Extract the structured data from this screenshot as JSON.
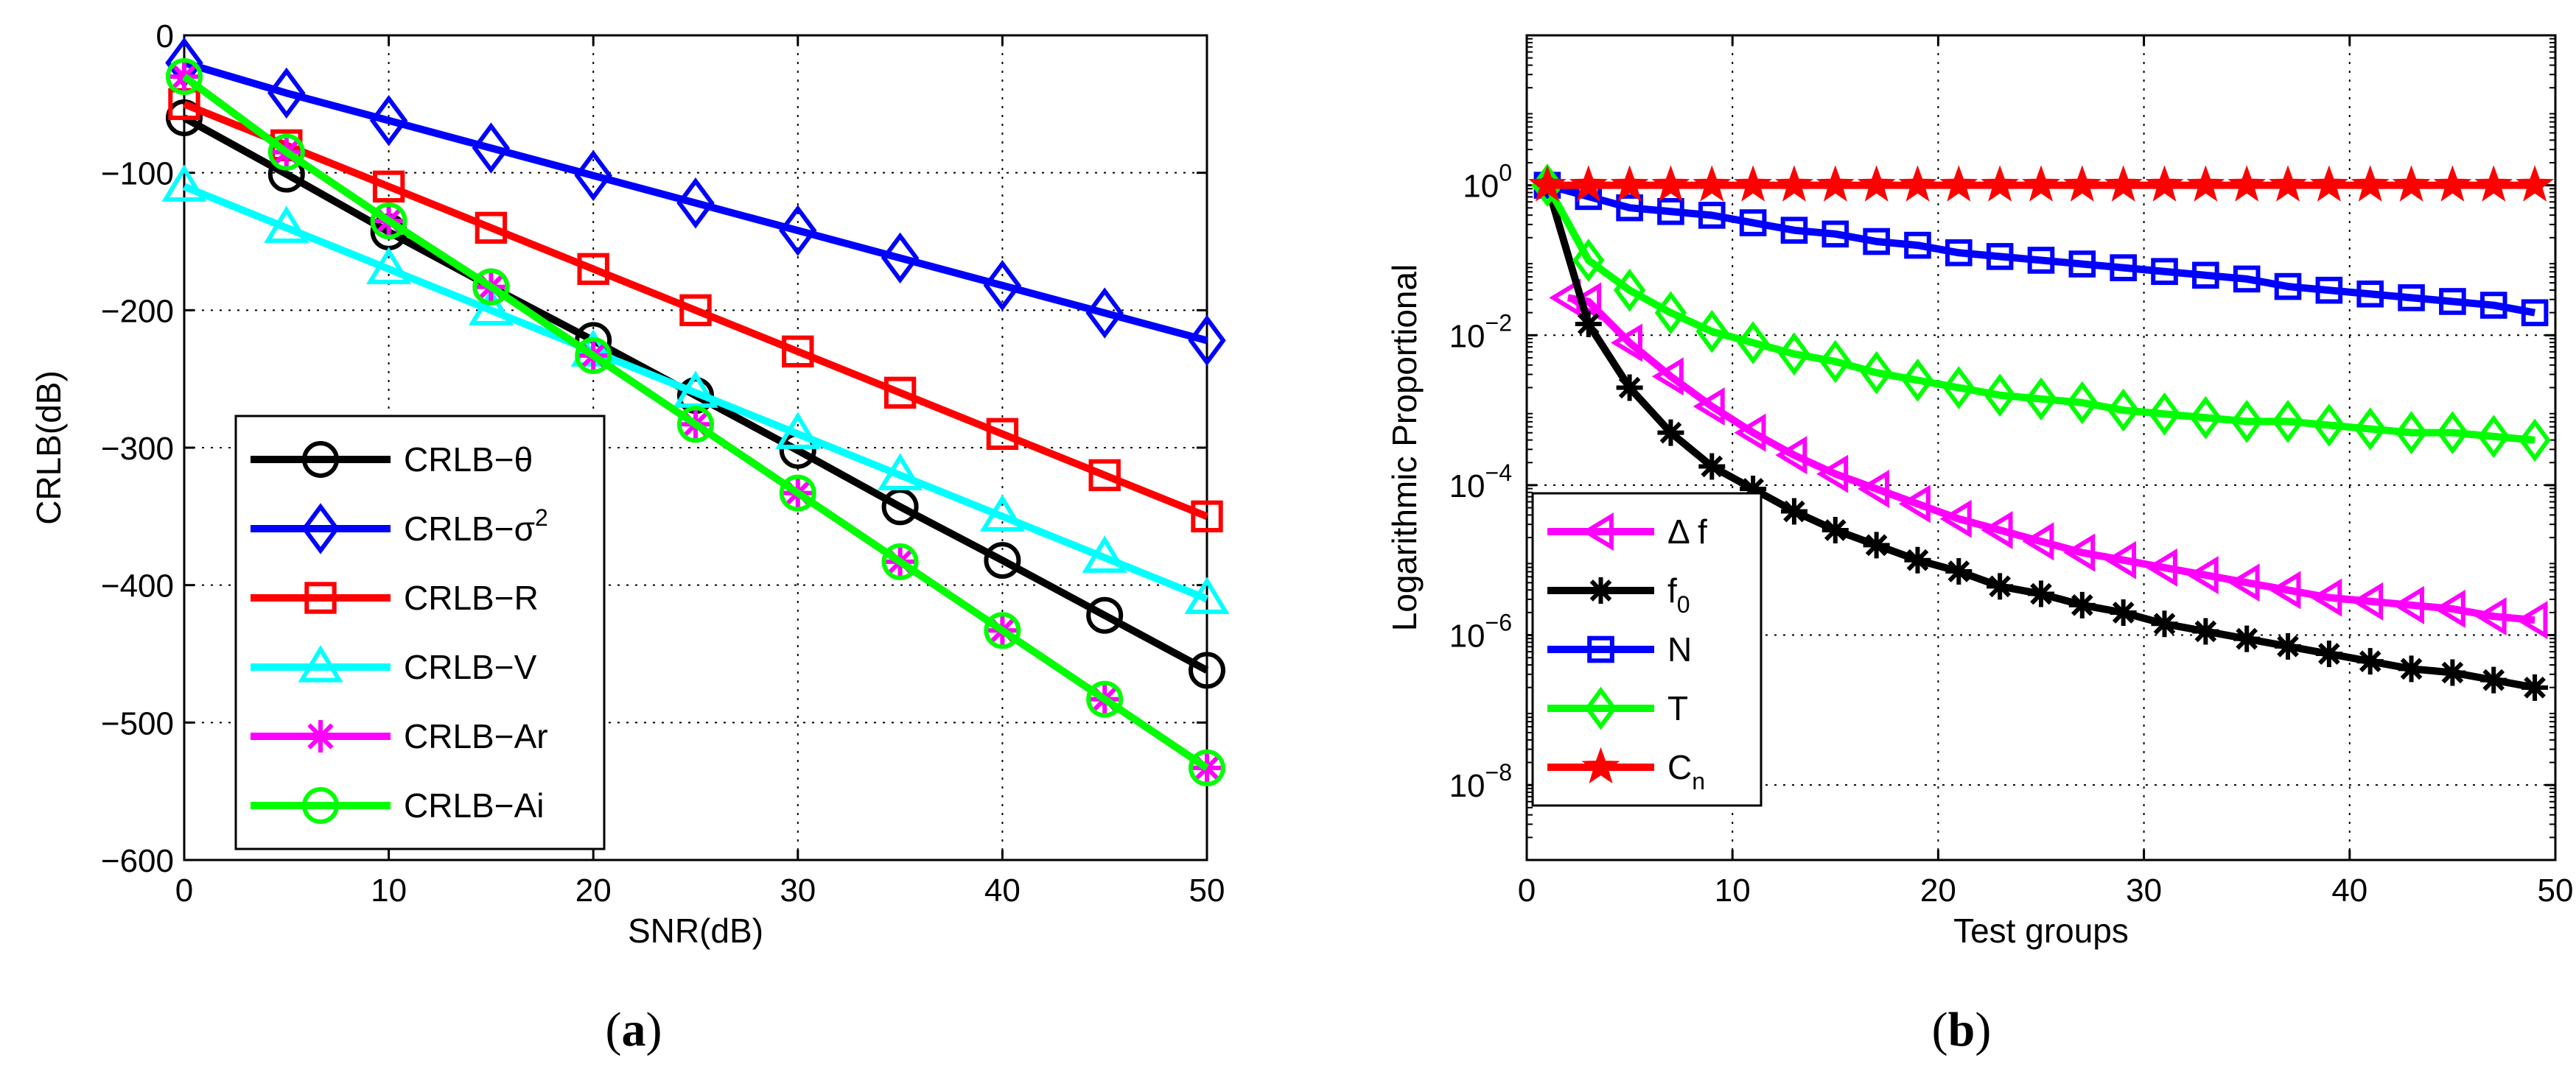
{
  "chart_data": [
    {
      "type": "line",
      "panel_label": "a",
      "title": "",
      "xlabel": "SNR(dB)",
      "ylabel": "CRLB(dB)",
      "xlim": [
        0,
        50
      ],
      "ylim": [
        -600,
        0
      ],
      "xticks": [
        0,
        10,
        20,
        30,
        40,
        50
      ],
      "yticks": [
        0,
        -100,
        -200,
        -300,
        -400,
        -500,
        -600
      ],
      "xtick_labels": [
        "0",
        "10",
        "20",
        "30",
        "40",
        "50"
      ],
      "ytick_labels": [
        "0",
        "−100",
        "−200",
        "−300",
        "−400",
        "−500",
        "−600"
      ],
      "grid": true,
      "legend_position": "lower-left",
      "x": [
        0,
        5,
        10,
        15,
        20,
        25,
        30,
        35,
        40,
        45,
        50
      ],
      "series": [
        {
          "name": "CRLB−θ",
          "legend_base": "CRLB−θ",
          "legend_sup": "",
          "legend_sub": "",
          "color": "#000000",
          "marker": "circle",
          "values": [
            -60,
            -101,
            -143,
            -183,
            -222,
            -262,
            -302,
            -343,
            -382,
            -422,
            -462
          ]
        },
        {
          "name": "CRLB−σ²",
          "legend_base": "CRLB−σ",
          "legend_sup": "2",
          "legend_sub": "",
          "color": "#0000ff",
          "marker": "diamond",
          "values": [
            -20,
            -42,
            -62,
            -82,
            -102,
            -122,
            -142,
            -162,
            -182,
            -202,
            -222
          ]
        },
        {
          "name": "CRLB−R",
          "legend_base": "CRLB−R",
          "legend_sup": "",
          "legend_sub": "",
          "color": "#ff0000",
          "marker": "square",
          "values": [
            -50,
            -80,
            -110,
            -140,
            -170,
            -200,
            -230,
            -260,
            -290,
            -320,
            -350
          ]
        },
        {
          "name": "CRLB−V",
          "legend_base": "CRLB−V",
          "legend_sup": "",
          "legend_sub": "",
          "color": "#00ffff",
          "marker": "triangle",
          "values": [
            -110,
            -140,
            -170,
            -200,
            -230,
            -260,
            -290,
            -320,
            -350,
            -380,
            -410
          ]
        },
        {
          "name": "CRLB−Ar",
          "legend_base": "CRLB−Ar",
          "legend_sup": "",
          "legend_sub": "",
          "color": "#ff00ff",
          "marker": "asterisk",
          "values": [
            -30,
            -85,
            -135,
            -183,
            -233,
            -283,
            -333,
            -383,
            -433,
            -483,
            -533
          ]
        },
        {
          "name": "CRLB−Ai",
          "legend_base": "CRLB−Ai",
          "legend_sup": "",
          "legend_sub": "",
          "color": "#00ff00",
          "marker": "circle",
          "values": [
            -30,
            -85,
            -135,
            -183,
            -233,
            -283,
            -333,
            -383,
            -433,
            -483,
            -533
          ]
        }
      ]
    },
    {
      "type": "line",
      "panel_label": "b",
      "title": "",
      "xlabel": "Test groups",
      "ylabel": "Logarithmic Proportional",
      "yscale": "log",
      "xlim": [
        0,
        50
      ],
      "ylim_exp": [
        -9,
        2
      ],
      "xticks": [
        0,
        10,
        20,
        30,
        40,
        50
      ],
      "yticks_exp": [
        0,
        -2,
        -4,
        -6,
        -8
      ],
      "xtick_labels": [
        "0",
        "10",
        "20",
        "30",
        "40",
        "50"
      ],
      "ytick_labels": [
        {
          "base": "10",
          "exp": "0"
        },
        {
          "base": "10",
          "exp": "−2"
        },
        {
          "base": "10",
          "exp": "−4"
        },
        {
          "base": "10",
          "exp": "−6"
        },
        {
          "base": "10",
          "exp": "−8"
        }
      ],
      "grid": true,
      "legend_position": "lower-left",
      "x": [
        1,
        3,
        5,
        7,
        9,
        11,
        13,
        15,
        17,
        19,
        21,
        23,
        25,
        27,
        29,
        31,
        33,
        35,
        37,
        39,
        41,
        43,
        45,
        47,
        49
      ],
      "series": [
        {
          "name": "Δ f",
          "legend_base": "Δ f",
          "legend_sup": "",
          "legend_sub": "",
          "color": "#ff00ff",
          "marker": "triangle-left",
          "x_override": [
            2,
            3,
            5,
            7,
            9,
            11,
            13,
            15,
            17,
            19,
            21,
            23,
            25,
            27,
            29,
            31,
            33,
            35,
            37,
            39,
            41,
            43,
            45,
            47,
            49
          ],
          "log10_values": [
            -1.5,
            -1.55,
            -2.1,
            -2.55,
            -2.95,
            -3.3,
            -3.6,
            -3.85,
            -4.05,
            -4.25,
            -4.45,
            -4.6,
            -4.75,
            -4.9,
            -5.0,
            -5.1,
            -5.2,
            -5.3,
            -5.4,
            -5.5,
            -5.55,
            -5.6,
            -5.65,
            -5.75,
            -5.8
          ]
        },
        {
          "name": "f₀",
          "legend_base": "f",
          "legend_sup": "",
          "legend_sub": "0",
          "color": "#000000",
          "marker": "asterisk",
          "log10_values": [
            0,
            -1.85,
            -2.7,
            -3.3,
            -3.75,
            -4.05,
            -4.35,
            -4.6,
            -4.8,
            -5.0,
            -5.15,
            -5.35,
            -5.45,
            -5.6,
            -5.7,
            -5.85,
            -5.95,
            -6.05,
            -6.15,
            -6.25,
            -6.35,
            -6.45,
            -6.5,
            -6.6,
            -6.7
          ]
        },
        {
          "name": "N",
          "legend_base": "N",
          "legend_sup": "",
          "legend_sub": "",
          "color": "#0000ff",
          "marker": "square",
          "log10_values": [
            0,
            -0.15,
            -0.3,
            -0.35,
            -0.4,
            -0.5,
            -0.6,
            -0.65,
            -0.75,
            -0.8,
            -0.9,
            -0.95,
            -1.0,
            -1.05,
            -1.1,
            -1.15,
            -1.2,
            -1.25,
            -1.35,
            -1.4,
            -1.45,
            -1.5,
            -1.55,
            -1.6,
            -1.7
          ]
        },
        {
          "name": "T",
          "legend_base": "T",
          "legend_sup": "",
          "legend_sub": "",
          "color": "#00ff00",
          "marker": "diamond",
          "log10_values": [
            0,
            -1.0,
            -1.4,
            -1.7,
            -1.95,
            -2.1,
            -2.25,
            -2.35,
            -2.5,
            -2.6,
            -2.7,
            -2.8,
            -2.85,
            -2.9,
            -3.0,
            -3.05,
            -3.1,
            -3.15,
            -3.15,
            -3.2,
            -3.25,
            -3.3,
            -3.3,
            -3.35,
            -3.4
          ]
        },
        {
          "name": "Cₙ",
          "legend_base": "C",
          "legend_sup": "",
          "legend_sub": "n",
          "color": "#ff0000",
          "marker": "star",
          "log10_values": [
            0,
            0,
            0,
            0,
            0,
            0,
            0,
            0,
            0,
            0,
            0,
            0,
            0,
            0,
            0,
            0,
            0,
            0,
            0,
            0,
            0,
            0,
            0,
            0,
            0
          ]
        }
      ]
    }
  ],
  "captions": {
    "a": "(a)",
    "b": "(b)"
  }
}
